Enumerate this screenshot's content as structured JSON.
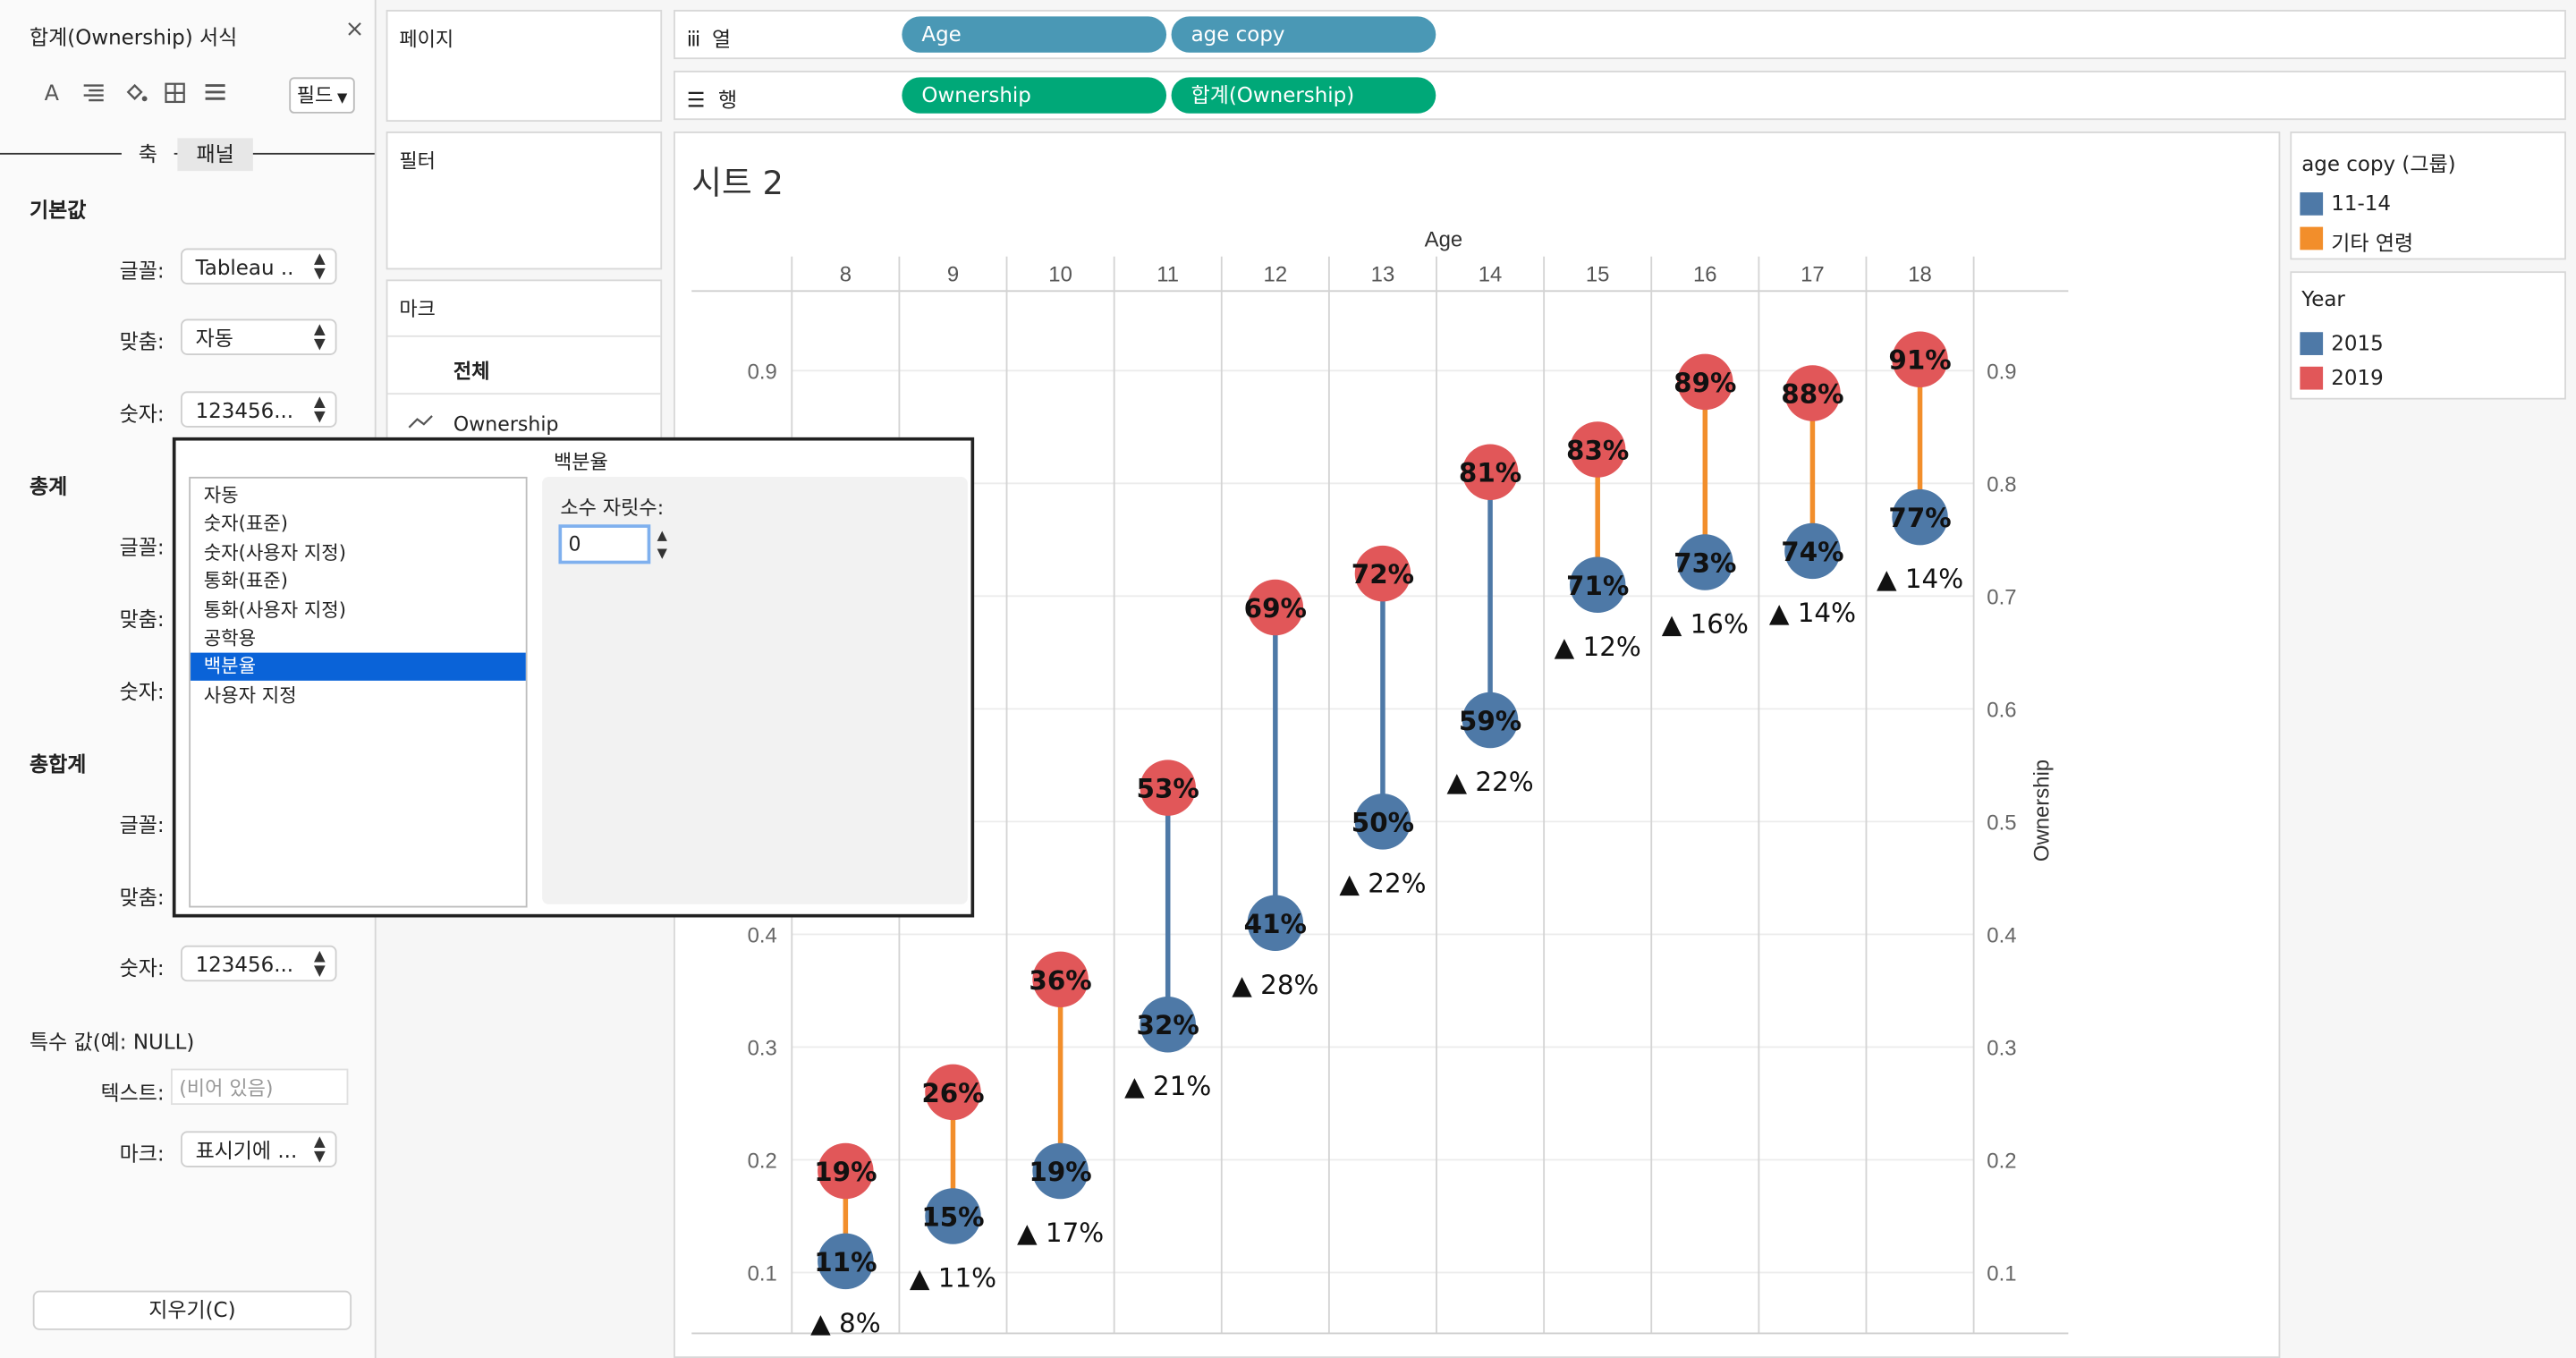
{
  "format_pane": {
    "title": "합계(Ownership) 서식",
    "close": "×",
    "field_dropdown": "필드",
    "tabs": [
      "축",
      "패널"
    ],
    "sections": {
      "default": "기본값",
      "totals": "총계",
      "grand_totals": "총합계",
      "special": "특수 값(예: NULL)"
    },
    "labels": {
      "font": "글꼴:",
      "align": "맞춤:",
      "number": "숫자:",
      "text": "텍스트:",
      "marks": "마크:"
    },
    "values": {
      "font": "Tableau ..",
      "align": "자동",
      "number": "123456...",
      "text_placeholder": "(비어 있음)",
      "marks": "표시기에 ..."
    },
    "clear_button": "지우기(C)"
  },
  "shelves": {
    "pages": "페이지",
    "filters": "필터",
    "marks": "마크",
    "marks_all": "전체",
    "marks_item": "Ownership",
    "columns_label": "열",
    "rows_label": "행",
    "columns": [
      "Age",
      "age copy"
    ],
    "rows": [
      "Ownership",
      "합계(Ownership)"
    ]
  },
  "popup": {
    "title": "백분율",
    "items": [
      "자동",
      "숫자(표준)",
      "숫자(사용자 지정)",
      "통화(표준)",
      "통화(사용자 지정)",
      "공학용",
      "백분율",
      "사용자 지정"
    ],
    "selected_index": 6,
    "decimals_label": "소수 자릿수:",
    "decimals_value": "0"
  },
  "sheet_title": "시트 2",
  "chart_data": {
    "type": "dumbbell",
    "x_header": "Age",
    "y_axis_label": "Ownership",
    "ylim": [
      0.06,
      0.96
    ],
    "yticks": [
      0.1,
      0.2,
      0.3,
      0.4,
      0.5,
      0.6,
      0.7,
      0.8,
      0.9
    ],
    "categories": [
      "8",
      "9",
      "10",
      "11",
      "12",
      "13",
      "14",
      "15",
      "16",
      "17",
      "18"
    ],
    "series": [
      {
        "name": "2015",
        "values": [
          0.11,
          0.15,
          0.19,
          0.32,
          0.41,
          0.5,
          0.59,
          0.71,
          0.73,
          0.74,
          0.77
        ],
        "labels": [
          "11%",
          "15%",
          "19%",
          "32%",
          "41%",
          "50%",
          "59%",
          "71%",
          "73%",
          "74%",
          "77%"
        ]
      },
      {
        "name": "2019",
        "values": [
          0.19,
          0.26,
          0.36,
          0.53,
          0.69,
          0.72,
          0.81,
          0.83,
          0.89,
          0.88,
          0.91
        ],
        "labels": [
          "19%",
          "26%",
          "36%",
          "53%",
          "69%",
          "72%",
          "81%",
          "83%",
          "89%",
          "88%",
          "91%"
        ]
      }
    ],
    "diff_labels": [
      "▲ 8%",
      "▲ 11%",
      "▲ 17%",
      "▲ 21%",
      "▲ 28%",
      "▲ 22%",
      "▲ 22%",
      "▲ 12%",
      "▲ 16%",
      "▲ 14%",
      "▲ 14%"
    ],
    "line_group": [
      "other",
      "other",
      "other",
      "11-14",
      "11-14",
      "11-14",
      "11-14",
      "other",
      "other",
      "other",
      "other"
    ]
  },
  "legends": {
    "age_group": {
      "title": "age copy (그룹)",
      "items": [
        {
          "label": "11-14",
          "color": "#4e79a7"
        },
        {
          "label": "기타 연령",
          "color": "#f28e2b"
        }
      ]
    },
    "year": {
      "title": "Year",
      "items": [
        {
          "label": "2015",
          "color": "#4e79a7"
        },
        {
          "label": "2019",
          "color": "#e15759"
        }
      ]
    }
  },
  "colors": {
    "blue": "#4e79a7",
    "orange": "#f28e2b",
    "red": "#e15759",
    "pill_blue": "#4a98b5",
    "pill_green": "#00a878"
  }
}
